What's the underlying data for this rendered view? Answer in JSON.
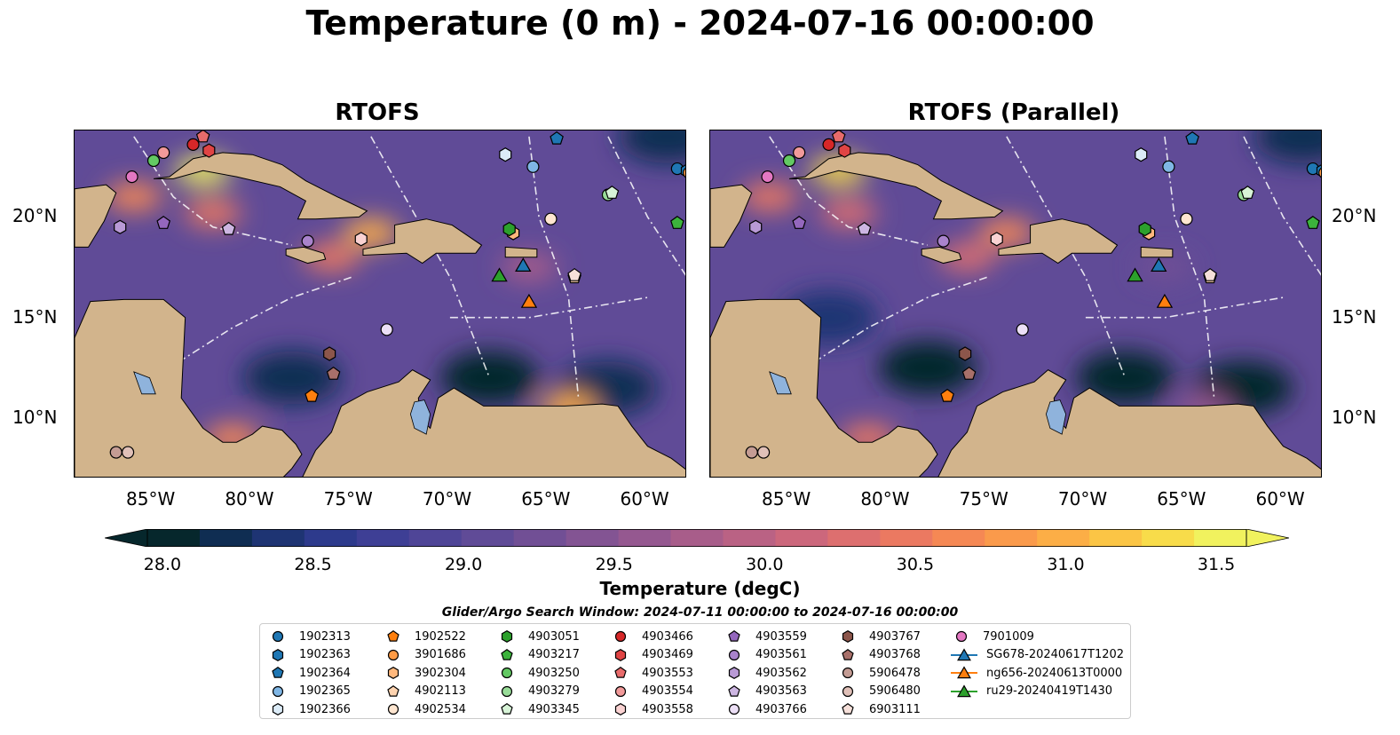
{
  "title": "Temperature (0 m) - 2024-07-16 00:00:00",
  "panels": [
    {
      "title": "RTOFS"
    },
    {
      "title": "RTOFS (Parallel)"
    }
  ],
  "colorbar": {
    "label": "Temperature (degC)",
    "tick_labels": [
      "28.0",
      "28.5",
      "29.0",
      "29.5",
      "30.0",
      "30.5",
      "31.0",
      "31.5"
    ],
    "colors": [
      "#06272c",
      "#0f2d52",
      "#1e3473",
      "#2d3a8c",
      "#3e3f95",
      "#4f4597",
      "#604b97",
      "#714f95",
      "#835493",
      "#955890",
      "#a85d8a",
      "#ba6284",
      "#cc677c",
      "#dd6f6f",
      "#eb7961",
      "#f58854",
      "#fa9a4b",
      "#fcae46",
      "#fbc545",
      "#f8dc4a",
      "#f1f25e"
    ]
  },
  "search_window": "Glider/Argo Search Window: 2024-07-11 00:00:00 to 2024-07-16 00:00:00",
  "chart_data": {
    "type": "heatmap",
    "variable": "Temperature (0 m)",
    "units": "degC",
    "color_range": [
      28.0,
      31.5
    ],
    "extend": "both",
    "lon_range": [
      -89,
      -58
    ],
    "lat_range": [
      7,
      24.3
    ],
    "x_tick_labels": [
      "85°W",
      "80°W",
      "75°W",
      "70°W",
      "65°W",
      "60°W"
    ],
    "x_ticks": [
      -85,
      -80,
      -75,
      -70,
      -65,
      -60
    ],
    "y_tick_labels": [
      "10°N",
      "15°N",
      "20°N"
    ],
    "y_ticks": [
      10,
      15,
      20
    ],
    "fields": [
      {
        "panel": "RTOFS",
        "warm_spots": [
          {
            "lon": -82.5,
            "lat": 22.3,
            "value": 31.6
          },
          {
            "lon": -82.0,
            "lat": 20.2,
            "value": 30.4
          },
          {
            "lon": -74.0,
            "lat": 19.2,
            "value": 31.0
          },
          {
            "lon": -76.0,
            "lat": 18.0,
            "value": 30.4
          },
          {
            "lon": -86.0,
            "lat": 21.0,
            "value": 30.6
          },
          {
            "lon": -81.0,
            "lat": 9.0,
            "value": 30.6
          },
          {
            "lon": -64.0,
            "lat": 10.5,
            "value": 31.0
          },
          {
            "lon": -66.0,
            "lat": 17.5,
            "value": 29.8
          }
        ],
        "cool_spots": [
          {
            "lon": -68.0,
            "lat": 12.0,
            "value": 28.0
          },
          {
            "lon": -62.0,
            "lat": 11.5,
            "value": 28.1
          },
          {
            "lon": -78.0,
            "lat": 12.0,
            "value": 28.2
          },
          {
            "lon": -88.5,
            "lat": 9.5,
            "value": 28.1
          },
          {
            "lon": -59.0,
            "lat": 24.0,
            "value": 28.2
          }
        ]
      },
      {
        "panel": "RTOFS (Parallel)",
        "warm_spots": [
          {
            "lon": -82.5,
            "lat": 22.3,
            "value": 31.4
          },
          {
            "lon": -82.0,
            "lat": 20.2,
            "value": 30.2
          },
          {
            "lon": -74.0,
            "lat": 19.2,
            "value": 30.6
          },
          {
            "lon": -76.0,
            "lat": 18.0,
            "value": 30.2
          },
          {
            "lon": -86.0,
            "lat": 21.0,
            "value": 30.4
          },
          {
            "lon": -81.0,
            "lat": 9.0,
            "value": 30.4
          },
          {
            "lon": -64.0,
            "lat": 10.5,
            "value": 29.6
          },
          {
            "lon": -66.0,
            "lat": 17.5,
            "value": 29.3
          }
        ],
        "cool_spots": [
          {
            "lon": -68.0,
            "lat": 12.0,
            "value": 28.0
          },
          {
            "lon": -62.0,
            "lat": 11.5,
            "value": 28.0
          },
          {
            "lon": -78.0,
            "lat": 12.5,
            "value": 28.0
          },
          {
            "lon": -83.0,
            "lat": 15.0,
            "value": 28.3
          },
          {
            "lon": -88.5,
            "lat": 9.5,
            "value": 28.0
          },
          {
            "lon": -59.0,
            "lat": 24.0,
            "value": 28.1
          }
        ]
      }
    ],
    "series": [
      {
        "name": "1902313",
        "marker": "circle",
        "color": "#1f77b4",
        "lon": -58.5,
        "lat": 22.4
      },
      {
        "name": "1902363",
        "marker": "hexagon",
        "color": "#1f77b4",
        "lon": -58.0,
        "lat": 22.3
      },
      {
        "name": "1902364",
        "marker": "pentagon",
        "color": "#1f77b4",
        "lon": -64.6,
        "lat": 23.9
      },
      {
        "name": "1902365",
        "marker": "circle",
        "color": "#7fb6e5",
        "lon": -65.8,
        "lat": 22.5
      },
      {
        "name": "1902366",
        "marker": "hexagon",
        "color": "#dcecf8",
        "lon": -67.2,
        "lat": 23.1
      },
      {
        "name": "1902522",
        "marker": "pentagon",
        "color": "#ff7f0e",
        "lon": -77.0,
        "lat": 11.1
      },
      {
        "name": "3901686",
        "marker": "circle",
        "color": "#ff9b45",
        "lon": -57.9,
        "lat": 22.2
      },
      {
        "name": "3902304",
        "marker": "hexagon",
        "color": "#ffb87d",
        "lon": -66.8,
        "lat": 19.2
      },
      {
        "name": "4902113",
        "marker": "pentagon",
        "color": "#ffd4b0",
        "lon": -63.7,
        "lat": 17.0
      },
      {
        "name": "4902534",
        "marker": "circle",
        "color": "#ffe6d0",
        "lon": -64.9,
        "lat": 19.9
      },
      {
        "name": "4903051",
        "marker": "hexagon",
        "color": "#2ca02c",
        "lon": -67.0,
        "lat": 19.4
      },
      {
        "name": "4903217",
        "marker": "pentagon",
        "color": "#3cb33c",
        "lon": -58.5,
        "lat": 19.7
      },
      {
        "name": "4903250",
        "marker": "circle",
        "color": "#63c963",
        "lon": -85.0,
        "lat": 22.8
      },
      {
        "name": "4903279",
        "marker": "circle",
        "color": "#98dc98",
        "lon": -62.0,
        "lat": 21.1
      },
      {
        "name": "4903345",
        "marker": "pentagon",
        "color": "#d7f3d7",
        "lon": -61.8,
        "lat": 21.2
      },
      {
        "name": "4903466",
        "marker": "circle",
        "color": "#d62728",
        "lon": -83.0,
        "lat": 23.6
      },
      {
        "name": "4903469",
        "marker": "hexagon",
        "color": "#e04444",
        "lon": -82.2,
        "lat": 23.3
      },
      {
        "name": "4903553",
        "marker": "pentagon",
        "color": "#e86b6b",
        "lon": -82.5,
        "lat": 24.0
      },
      {
        "name": "4903554",
        "marker": "circle",
        "color": "#f29a9a",
        "lon": -84.5,
        "lat": 23.2
      },
      {
        "name": "4903558",
        "marker": "hexagon",
        "color": "#fad2d2",
        "lon": -74.5,
        "lat": 18.9
      },
      {
        "name": "4903559",
        "marker": "pentagon",
        "color": "#9467bd",
        "lon": -84.5,
        "lat": 19.7
      },
      {
        "name": "4903561",
        "marker": "circle",
        "color": "#a983cc",
        "lon": -77.2,
        "lat": 18.8
      },
      {
        "name": "4903562",
        "marker": "hexagon",
        "color": "#b99ad6",
        "lon": -86.7,
        "lat": 19.5
      },
      {
        "name": "4903563",
        "marker": "pentagon",
        "color": "#cdb6e2",
        "lon": -81.2,
        "lat": 19.4
      },
      {
        "name": "4903766",
        "marker": "circle",
        "color": "#ecdff6",
        "lon": -73.2,
        "lat": 14.4
      },
      {
        "name": "4903767",
        "marker": "hexagon",
        "color": "#8c564b",
        "lon": -76.1,
        "lat": 13.2
      },
      {
        "name": "4903768",
        "marker": "pentagon",
        "color": "#a8706a",
        "lon": -75.9,
        "lat": 12.2
      },
      {
        "name": "5906478",
        "marker": "circle",
        "color": "#c49c94",
        "lon": -86.9,
        "lat": 8.3
      },
      {
        "name": "5906480",
        "marker": "circle",
        "color": "#e0c0b8",
        "lon": -86.3,
        "lat": 8.3
      },
      {
        "name": "6903111",
        "marker": "pentagon",
        "color": "#f6e0da",
        "lon": -63.7,
        "lat": 17.1
      },
      {
        "name": "7901009",
        "marker": "circle",
        "color": "#e377c2",
        "lon": -86.1,
        "lat": 22.0
      },
      {
        "name": "SG678-20240617T1202",
        "marker": "triangle",
        "color": "#1f77b4",
        "lon": -66.3,
        "lat": 17.6
      },
      {
        "name": "ng656-20240613T0000",
        "marker": "triangle",
        "color": "#ff7f0e",
        "lon": -66.0,
        "lat": 15.8
      },
      {
        "name": "ru29-20240419T1430",
        "marker": "triangle",
        "color": "#2ca02c",
        "lon": -67.5,
        "lat": 17.1
      }
    ]
  }
}
